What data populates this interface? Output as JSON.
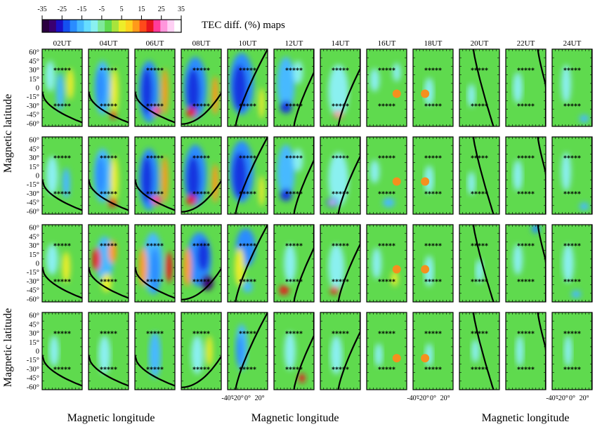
{
  "title": "TEC diff. (%) maps",
  "colorbar": {
    "ticks": [
      -35,
      -25,
      -15,
      -5,
      5,
      15,
      25,
      35
    ],
    "colors": [
      "#2b0040",
      "#3a0070",
      "#1b10c8",
      "#1450f0",
      "#2a8cff",
      "#46b9ff",
      "#66dcff",
      "#8af0f0",
      "#7fe89a",
      "#5fda4e",
      "#a8e43c",
      "#eded2a",
      "#ffd21e",
      "#ff9a1a",
      "#ff4a1a",
      "#e8141e",
      "#ff3c9a",
      "#ff96dc",
      "#ffd0f4",
      "#ffffff"
    ]
  },
  "chart_data": {
    "type": "heatmap",
    "columns": [
      "02UT",
      "04UT",
      "06UT",
      "08UT",
      "10UT",
      "12UT",
      "14UT",
      "16UT",
      "18UT",
      "20UT",
      "22UT",
      "24UT"
    ],
    "rows": 4,
    "ylabel": "Magnetic latitude",
    "xlabel": "Magnetic longitude",
    "ytick_labels": [
      "60°",
      "45°",
      "30°",
      "15°",
      "0",
      "-15°",
      "-30°",
      "-45°",
      "-60°"
    ],
    "ylim": [
      -65,
      65
    ],
    "xtick_labels": [
      "-40°",
      "-20°",
      "0°",
      "20°"
    ],
    "xtick_columns": [
      4,
      8,
      11
    ],
    "marker_symbol": "*****",
    "marker_lats": [
      30,
      -30
    ],
    "sun_marker_color": "#f5901e",
    "sun_marker_columns": [
      7,
      8
    ],
    "sun_marker_lats": [
      -10,
      -10,
      -10,
      -12
    ],
    "colors": {
      "background": "#5fda4e",
      "terminator": "#000000"
    }
  }
}
